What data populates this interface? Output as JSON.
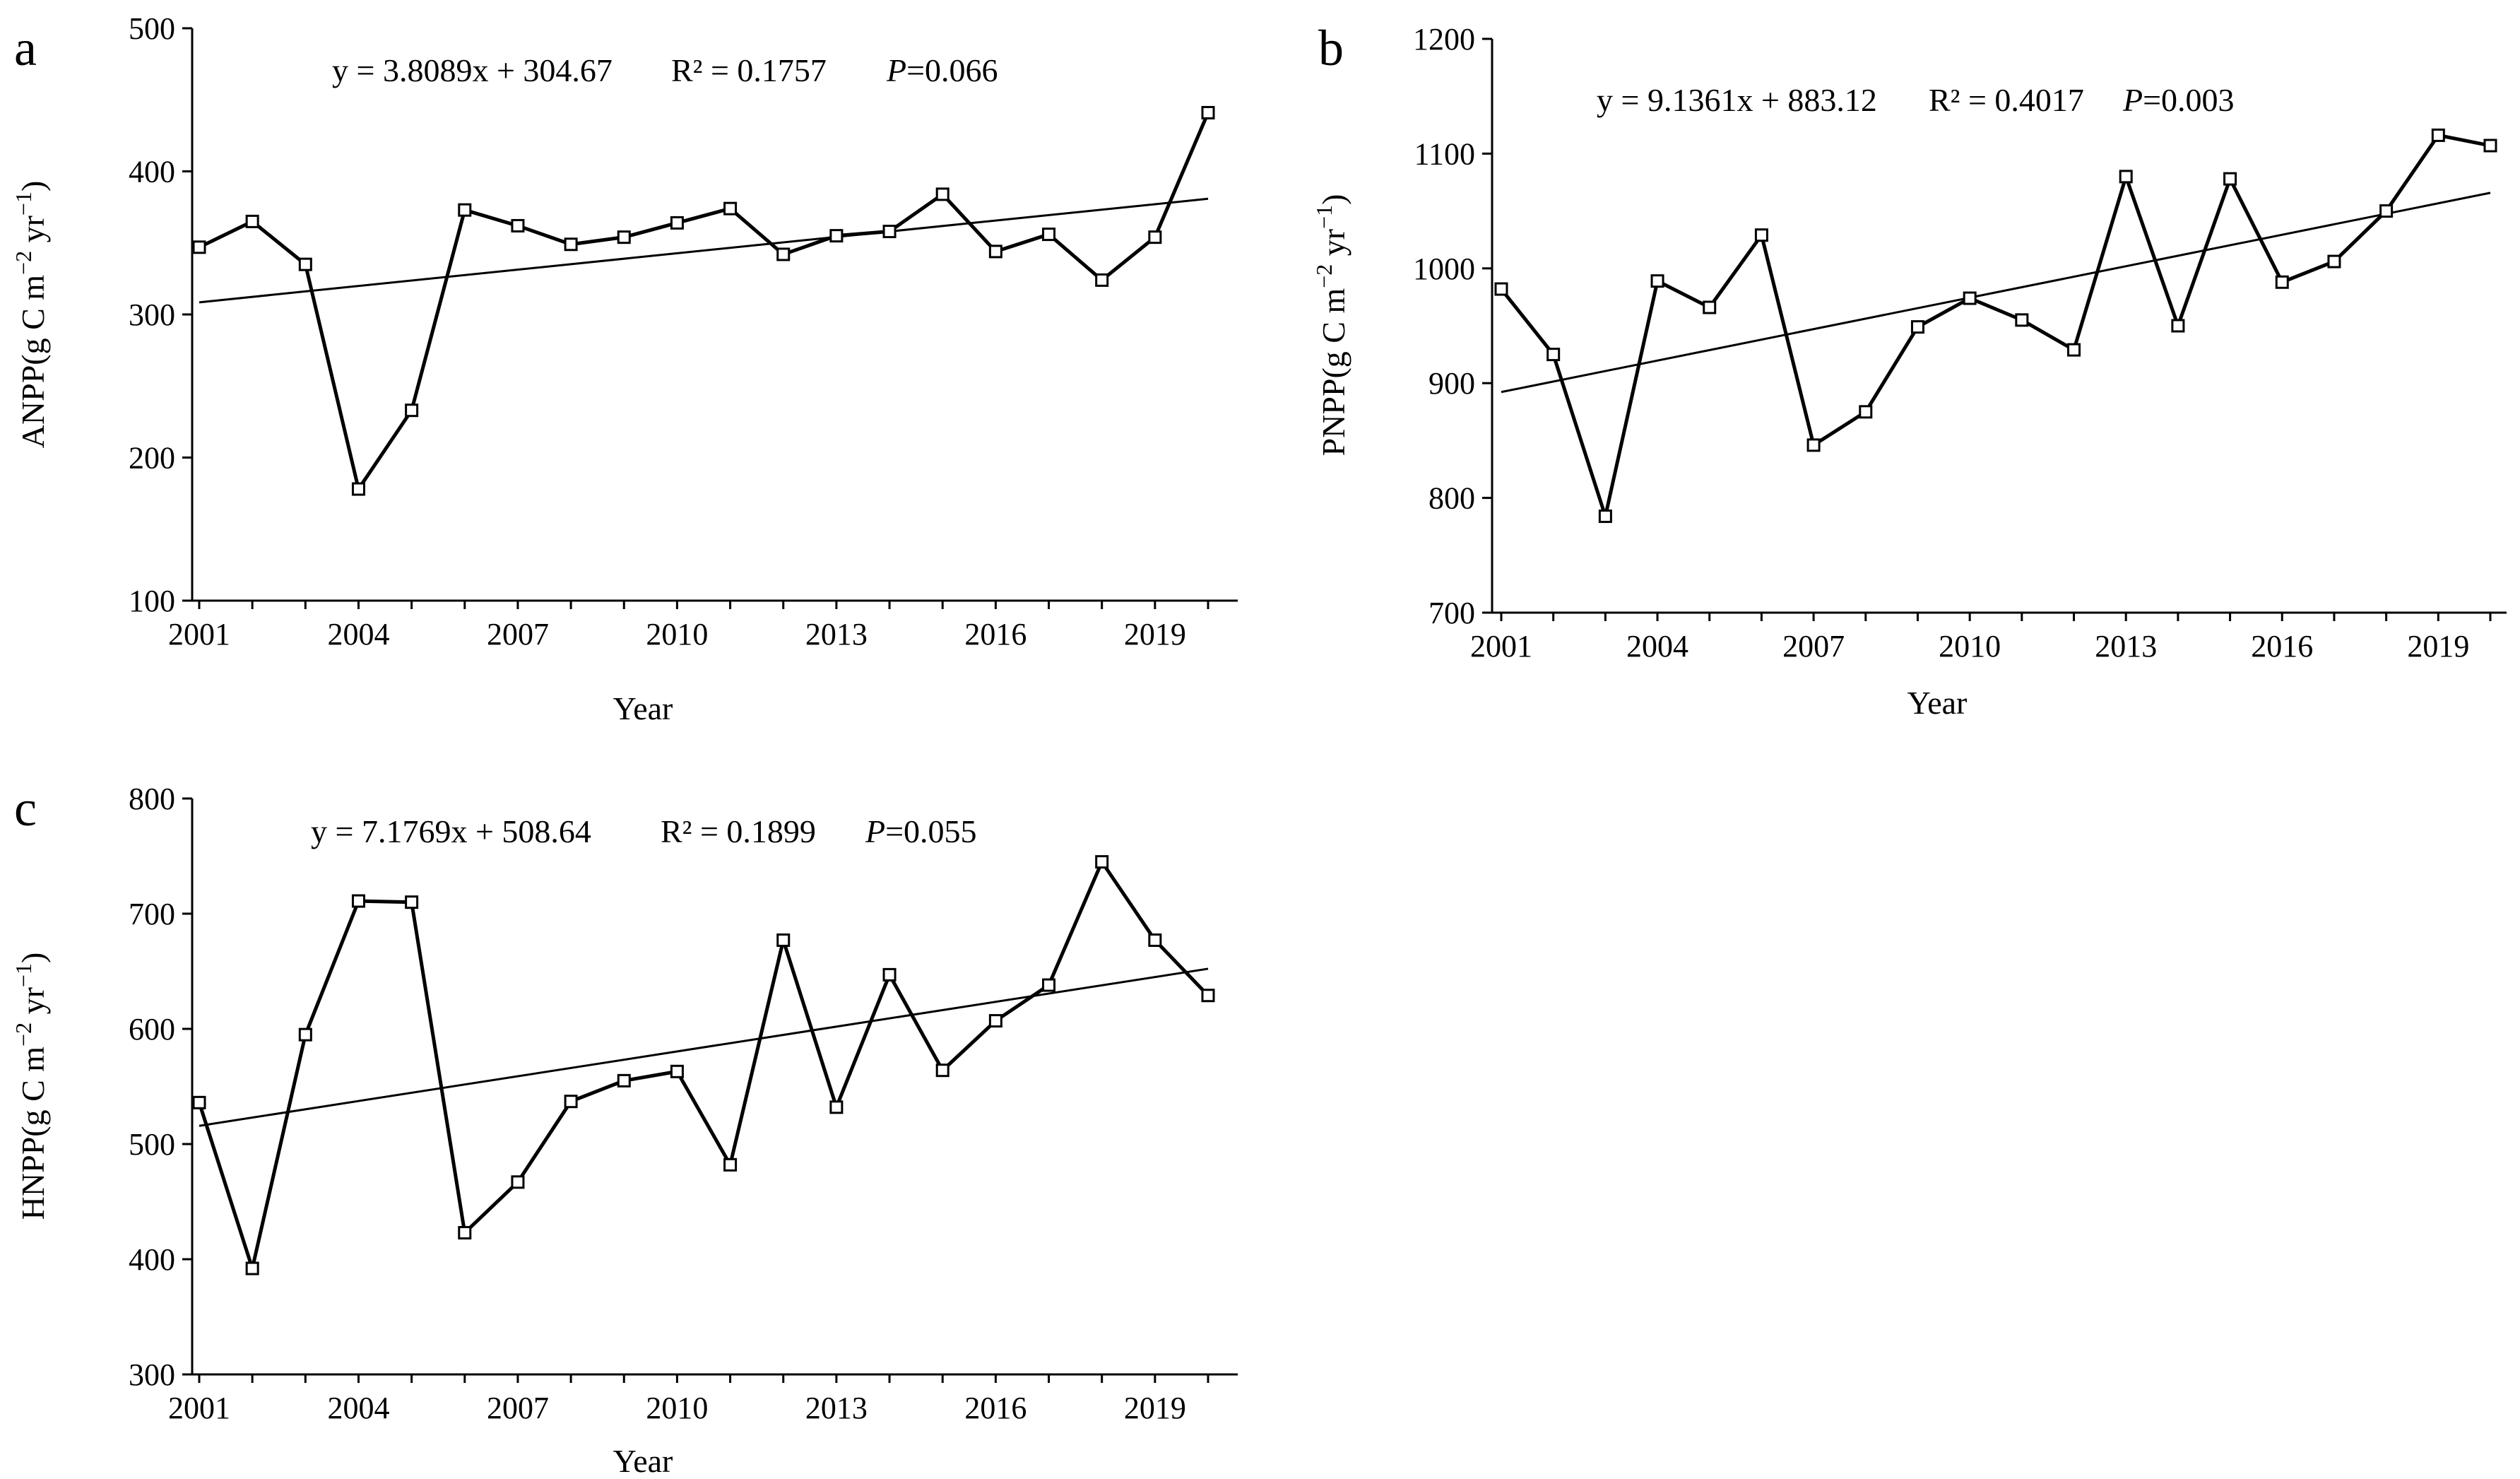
{
  "chart_data": [
    {
      "panel": "a",
      "type": "line",
      "ylabel_main": "ANPP(g C m",
      "ylabel_exp1": "−2",
      "ylabel_mid": " yr",
      "ylabel_exp2": "−1",
      "ylabel_end": ")",
      "xlabel": "Year",
      "ylim": [
        100,
        500
      ],
      "yticks": [
        100,
        200,
        300,
        400,
        500
      ],
      "xlim": [
        2001,
        2020
      ],
      "xticks": [
        2001,
        2004,
        2007,
        2010,
        2013,
        2016,
        2019
      ],
      "series": [
        {
          "name": "ANPP",
          "x": [
            2001,
            2002,
            2003,
            2004,
            2005,
            2006,
            2007,
            2008,
            2009,
            2010,
            2011,
            2012,
            2013,
            2014,
            2015,
            2016,
            2017,
            2018,
            2019,
            2020
          ],
          "values": [
            347,
            365,
            335,
            178,
            233,
            373,
            362,
            349,
            354,
            364,
            374,
            342,
            355,
            358,
            384,
            344,
            356,
            324,
            354,
            441
          ]
        }
      ],
      "trendline": {
        "slope": 3.8089,
        "intercept": 304.67
      },
      "equation_text": "y = 3.8089x + 304.67",
      "r2_text": "R² = 0.1757",
      "p_label": "P",
      "p_value": "=0.066"
    },
    {
      "panel": "b",
      "type": "line",
      "ylabel_main": "PNPP(g C m",
      "ylabel_exp1": "−2",
      "ylabel_mid": " yr",
      "ylabel_exp2": "−1",
      "ylabel_end": ")",
      "xlabel": "Year",
      "ylim": [
        700,
        1200
      ],
      "yticks": [
        700,
        800,
        900,
        1000,
        1100,
        1200
      ],
      "xlim": [
        2001,
        2020
      ],
      "xticks": [
        2001,
        2004,
        2007,
        2010,
        2013,
        2016,
        2019
      ],
      "series": [
        {
          "name": "PNPP",
          "x": [
            2001,
            2002,
            2003,
            2004,
            2005,
            2006,
            2007,
            2008,
            2009,
            2010,
            2011,
            2012,
            2013,
            2014,
            2015,
            2016,
            2017,
            2018,
            2019,
            2020
          ],
          "values": [
            982,
            925,
            784,
            989,
            966,
            1029,
            846,
            875,
            949,
            974,
            955,
            929,
            1080,
            950,
            1078,
            988,
            1006,
            1050,
            1116,
            1107
          ]
        }
      ],
      "trendline": {
        "slope": 9.1361,
        "intercept": 883.12
      },
      "equation_text": "y = 9.1361x + 883.12",
      "r2_text": "R² = 0.4017",
      "p_label": "P",
      "p_value": "=0.003"
    },
    {
      "panel": "c",
      "type": "line",
      "ylabel_main": "HNPP(g C m",
      "ylabel_exp1": "−2",
      "ylabel_mid": " yr",
      "ylabel_exp2": "−1",
      "ylabel_end": ")",
      "xlabel": "Year",
      "ylim": [
        300,
        800
      ],
      "yticks": [
        300,
        400,
        500,
        600,
        700,
        800
      ],
      "xlim": [
        2001,
        2020
      ],
      "xticks": [
        2001,
        2004,
        2007,
        2010,
        2013,
        2016,
        2019
      ],
      "series": [
        {
          "name": "HNPP",
          "x": [
            2001,
            2002,
            2003,
            2004,
            2005,
            2006,
            2007,
            2008,
            2009,
            2010,
            2011,
            2012,
            2013,
            2014,
            2015,
            2016,
            2017,
            2018,
            2019,
            2020
          ],
          "values": [
            536,
            392,
            595,
            711,
            710,
            423,
            467,
            537,
            555,
            563,
            482,
            677,
            532,
            647,
            564,
            607,
            638,
            745,
            677,
            629
          ]
        }
      ],
      "trendline": {
        "slope": 7.1769,
        "intercept": 508.64
      },
      "equation_text": "y = 7.1769x + 508.64",
      "r2_text": "R² = 0.1899",
      "p_label": "P",
      "p_value": "=0.055"
    }
  ],
  "colors": {
    "line": "#000000",
    "axis": "#000000",
    "background": "#ffffff"
  }
}
